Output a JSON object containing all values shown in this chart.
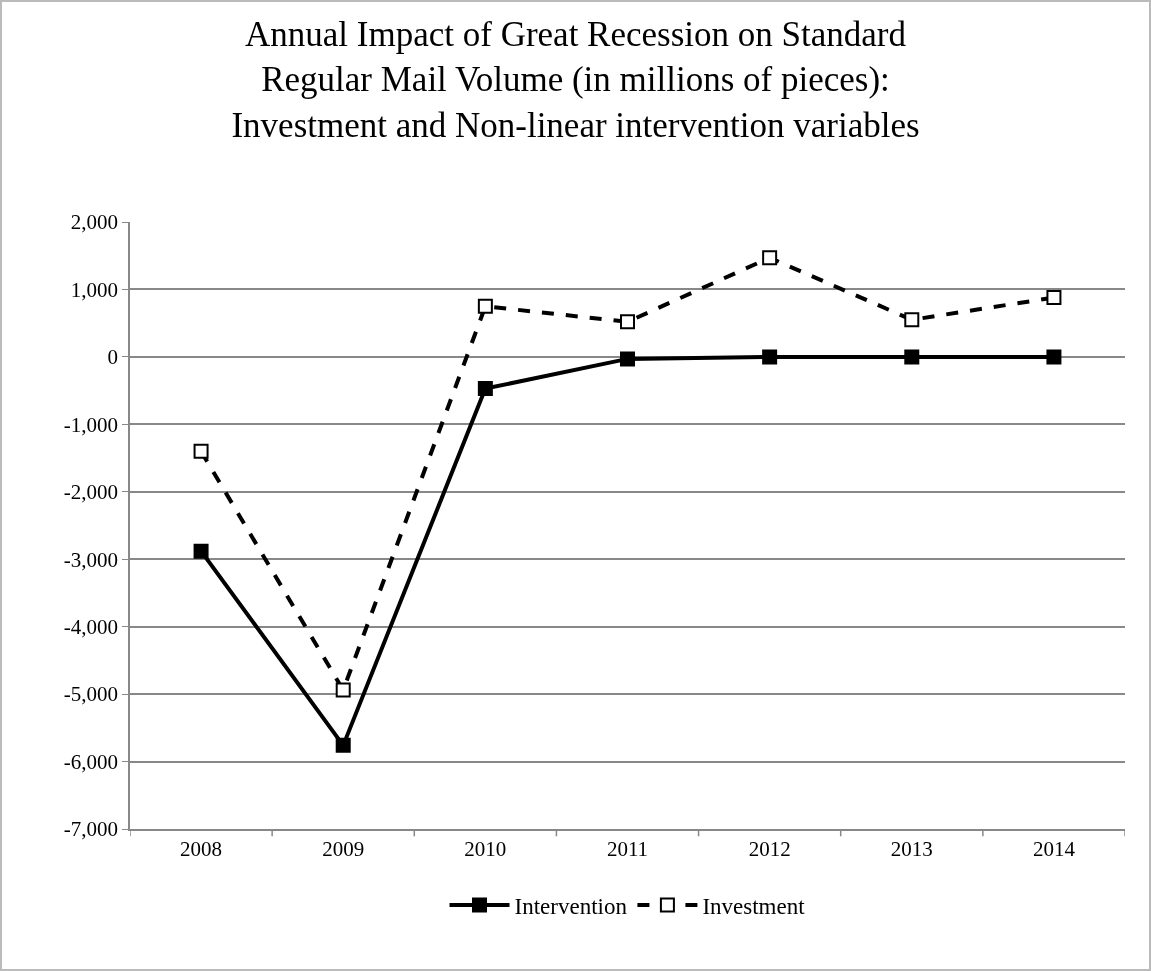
{
  "chart_data": {
    "type": "line",
    "title": "Annual Impact of Great Recession on Standard Regular Mail Volume (in millions of pieces): Investment and Non-linear intervention variables",
    "categories": [
      "2008",
      "2009",
      "2010",
      "2011",
      "2012",
      "2013",
      "2014"
    ],
    "series": [
      {
        "name": "Intervention",
        "color": "#000000",
        "line_style": "solid",
        "values": [
          -2880,
          -5760,
          -470,
          -30,
          0,
          0,
          0
        ]
      },
      {
        "name": "Investment",
        "color": "#000000",
        "line_style": "dashed",
        "values": [
          -1400,
          -4940,
          750,
          520,
          1470,
          550,
          880
        ]
      }
    ],
    "ylim": [
      -7000,
      2000
    ],
    "yticks": [
      {
        "value": -7000,
        "label": "-7,000"
      },
      {
        "value": -6000,
        "label": "-6,000"
      },
      {
        "value": -5000,
        "label": "-5,000"
      },
      {
        "value": -4000,
        "label": "-4,000"
      },
      {
        "value": -3000,
        "label": "-3,000"
      },
      {
        "value": -2000,
        "label": "-2,000"
      },
      {
        "value": -1000,
        "label": "-1,000"
      },
      {
        "value": 0,
        "label": "0"
      },
      {
        "value": 1000,
        "label": "1,000"
      },
      {
        "value": 2000,
        "label": "2,000"
      }
    ],
    "grid": "y",
    "legend": "bottom",
    "marker": "square"
  }
}
